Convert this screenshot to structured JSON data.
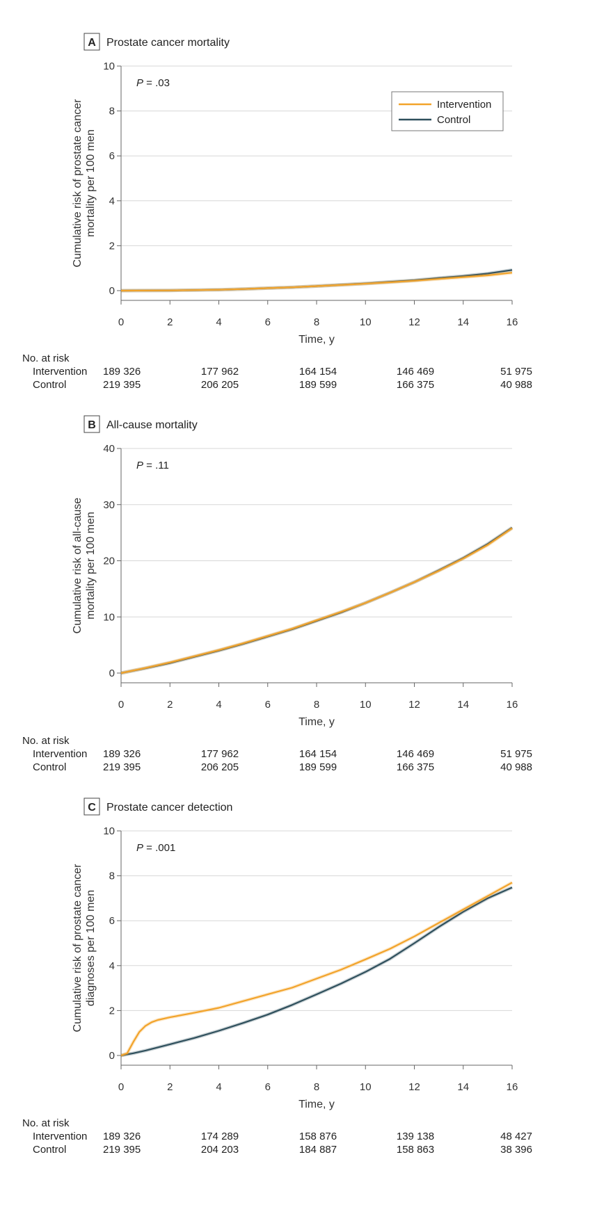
{
  "colors": {
    "intervention": "#F2A32A",
    "control": "#2E4F5C",
    "grid": "#D7D7D7",
    "axis": "#666666"
  },
  "risk_header": "No. at risk",
  "chart_data": [
    {
      "type": "line",
      "panel_letter": "A",
      "title": "Prostate cancer mortality",
      "p_label": "P",
      "p_value": " = .03",
      "ylabel_lines": [
        "Cumulative risk of prostate cancer",
        "mortality per 100 men"
      ],
      "xlabel": "Time, y",
      "xlim": [
        0,
        16
      ],
      "ylim": [
        0,
        10
      ],
      "xticks": [
        0,
        2,
        4,
        6,
        8,
        10,
        12,
        14,
        16
      ],
      "yticks": [
        0,
        2,
        4,
        6,
        8,
        10
      ],
      "legend": {
        "position": "top-right",
        "entries": [
          "Intervention",
          "Control"
        ]
      },
      "series": [
        {
          "name": "Intervention",
          "color": "#F2A32A",
          "x": [
            0,
            2,
            4,
            5,
            6,
            7,
            8,
            9,
            10,
            11,
            12,
            13,
            14,
            15,
            16
          ],
          "y": [
            0,
            0.01,
            0.04,
            0.07,
            0.11,
            0.15,
            0.2,
            0.25,
            0.31,
            0.37,
            0.44,
            0.52,
            0.6,
            0.68,
            0.8
          ]
        },
        {
          "name": "Control",
          "color": "#2E4F5C",
          "x": [
            0,
            2,
            4,
            5,
            6,
            7,
            8,
            9,
            10,
            11,
            12,
            13,
            14,
            15,
            16
          ],
          "y": [
            0,
            0.01,
            0.04,
            0.07,
            0.11,
            0.15,
            0.2,
            0.26,
            0.32,
            0.39,
            0.46,
            0.56,
            0.65,
            0.76,
            0.92
          ]
        }
      ],
      "at_risk": {
        "times": [
          0,
          4,
          8,
          12,
          16
        ],
        "rows": [
          {
            "label": "Intervention",
            "values": [
              "189 326",
              "177 962",
              "164 154",
              "146 469",
              "51 975"
            ]
          },
          {
            "label": "Control",
            "values": [
              "219 395",
              "206 205",
              "189 599",
              "166 375",
              "40 988"
            ]
          }
        ]
      }
    },
    {
      "type": "line",
      "panel_letter": "B",
      "title": "All-cause mortality",
      "p_label": "P",
      "p_value": " = .11",
      "ylabel_lines": [
        "Cumulative risk of all-cause",
        "mortality per 100 men"
      ],
      "xlabel": "Time, y",
      "xlim": [
        0,
        16
      ],
      "ylim": [
        0,
        40
      ],
      "xticks": [
        0,
        2,
        4,
        6,
        8,
        10,
        12,
        14,
        16
      ],
      "yticks": [
        0,
        10,
        20,
        30,
        40
      ],
      "series": [
        {
          "name": "Intervention",
          "color": "#F2A32A",
          "x": [
            0,
            1,
            2,
            3,
            4,
            5,
            6,
            7,
            8,
            9,
            10,
            11,
            12,
            13,
            14,
            15,
            16
          ],
          "y": [
            0,
            0.9,
            1.9,
            3.0,
            4.1,
            5.3,
            6.6,
            7.9,
            9.4,
            10.9,
            12.5,
            14.3,
            16.2,
            18.2,
            20.4,
            22.8,
            25.8
          ]
        },
        {
          "name": "Control",
          "color": "#2E4F5C",
          "x": [
            0,
            1,
            2,
            3,
            4,
            5,
            6,
            7,
            8,
            9,
            10,
            11,
            12,
            13,
            14,
            15,
            16
          ],
          "y": [
            0,
            0.85,
            1.8,
            2.9,
            4.0,
            5.2,
            6.5,
            7.8,
            9.3,
            10.8,
            12.5,
            14.3,
            16.2,
            18.3,
            20.5,
            23.0,
            25.9
          ]
        }
      ],
      "at_risk": {
        "times": [
          0,
          4,
          8,
          12,
          16
        ],
        "rows": [
          {
            "label": "Intervention",
            "values": [
              "189 326",
              "177 962",
              "164 154",
              "146 469",
              "51 975"
            ]
          },
          {
            "label": "Control",
            "values": [
              "219 395",
              "206 205",
              "189 599",
              "166 375",
              "40 988"
            ]
          }
        ]
      }
    },
    {
      "type": "line",
      "panel_letter": "C",
      "title": "Prostate cancer detection",
      "p_label": "P",
      "p_value": " = .001",
      "ylabel_lines": [
        "Cumulative risk of prostate cancer",
        "diagnoses per 100 men"
      ],
      "xlabel": "Time, y",
      "xlim": [
        0,
        16
      ],
      "ylim": [
        0,
        10
      ],
      "xticks": [
        0,
        2,
        4,
        6,
        8,
        10,
        12,
        14,
        16
      ],
      "yticks": [
        0,
        2,
        4,
        6,
        8,
        10
      ],
      "series": [
        {
          "name": "Intervention",
          "color": "#F2A32A",
          "x": [
            0,
            0.25,
            0.5,
            0.75,
            1,
            1.25,
            1.5,
            2,
            3,
            4,
            5,
            6,
            7,
            8,
            9,
            10,
            11,
            12,
            13,
            14,
            15,
            16
          ],
          "y": [
            0,
            0.1,
            0.6,
            1.05,
            1.32,
            1.48,
            1.58,
            1.7,
            1.9,
            2.12,
            2.42,
            2.72,
            3.02,
            3.42,
            3.82,
            4.28,
            4.75,
            5.3,
            5.9,
            6.5,
            7.1,
            7.7
          ]
        },
        {
          "name": "Control",
          "color": "#2E4F5C",
          "x": [
            0,
            0.5,
            1,
            2,
            3,
            4,
            5,
            6,
            7,
            8,
            9,
            10,
            11,
            12,
            13,
            14,
            15,
            16
          ],
          "y": [
            0,
            0.1,
            0.22,
            0.5,
            0.78,
            1.1,
            1.45,
            1.82,
            2.25,
            2.72,
            3.2,
            3.72,
            4.3,
            5.0,
            5.72,
            6.4,
            7.0,
            7.48
          ]
        }
      ],
      "at_risk": {
        "times": [
          0,
          4,
          8,
          12,
          16
        ],
        "rows": [
          {
            "label": "Intervention",
            "values": [
              "189 326",
              "174 289",
              "158 876",
              "139 138",
              "48 427"
            ]
          },
          {
            "label": "Control",
            "values": [
              "219 395",
              "204 203",
              "184 887",
              "158 863",
              "38 396"
            ]
          }
        ]
      }
    }
  ]
}
